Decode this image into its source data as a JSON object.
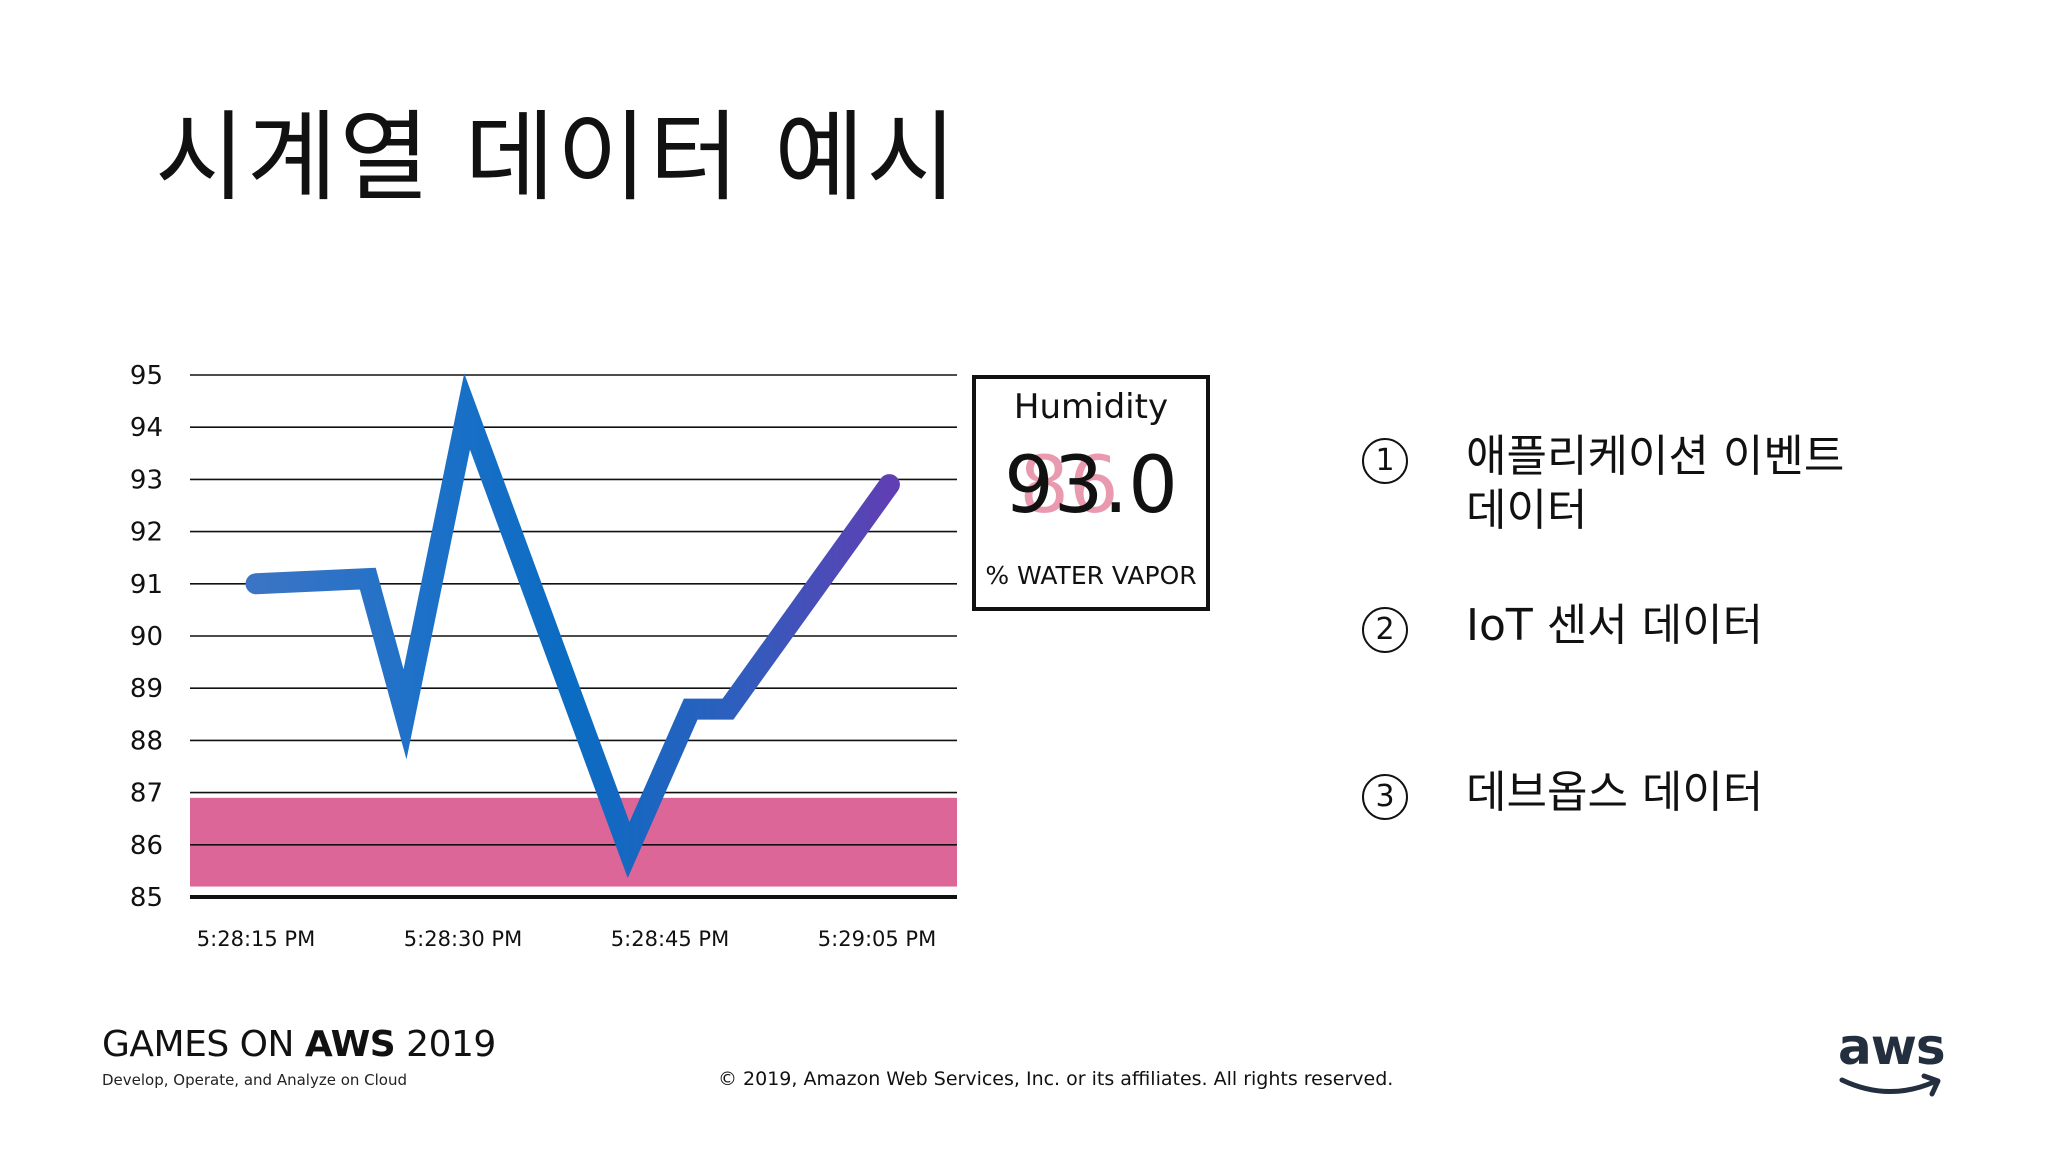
{
  "slide": {
    "title": "시계열 데이터 예시"
  },
  "chart_data": {
    "type": "line",
    "y_ticks": [
      95,
      94,
      93,
      92,
      91,
      90,
      89,
      88,
      87,
      86,
      85
    ],
    "ylim": [
      85,
      95
    ],
    "x_ticks": [
      "5:28:15 PM",
      "5:28:30 PM",
      "5:28:45 PM",
      "5:29:05 PM"
    ],
    "series": [
      {
        "x": [
          "5:28:15 PM",
          "5:28:24 PM",
          "5:28:27 PM",
          "5:28:32 PM",
          "5:28:45 PM",
          "5:28:50 PM",
          "5:28:53 PM",
          "5:29:06 PM"
        ],
        "values": [
          91.0,
          91.1,
          88.5,
          94.3,
          85.9,
          88.6,
          88.6,
          92.9
        ]
      }
    ],
    "band": {
      "from": 85.2,
      "to": 86.9,
      "color": "#dc6698"
    },
    "line_colors": [
      "#3b74c4",
      "#1f71c8",
      "#0a6cc2",
      "#2d5fbe",
      "#5f3fb3"
    ],
    "grid": true
  },
  "readout": {
    "label": "Humidity",
    "value": "93.0",
    "ghost_value": "86",
    "unit": "% WATER VAPOR"
  },
  "list": {
    "items": [
      {
        "marker": "1",
        "text": "애플리케이션 이벤트\n데이터"
      },
      {
        "marker": "2",
        "text": "IoT 센서 데이터"
      },
      {
        "marker": "3",
        "text": "데브옵스 데이터"
      }
    ]
  },
  "footer": {
    "brand_prefix": "GAMES ON ",
    "brand_bold": "AWS",
    "brand_year": " 2019",
    "brand_tagline": "Develop, Operate, and Analyze on Cloud",
    "copyright": "© 2019, Amazon Web Services, Inc. or its affiliates. All rights reserved.",
    "logo_text": "aws",
    "logo_color": "#232f3e"
  }
}
